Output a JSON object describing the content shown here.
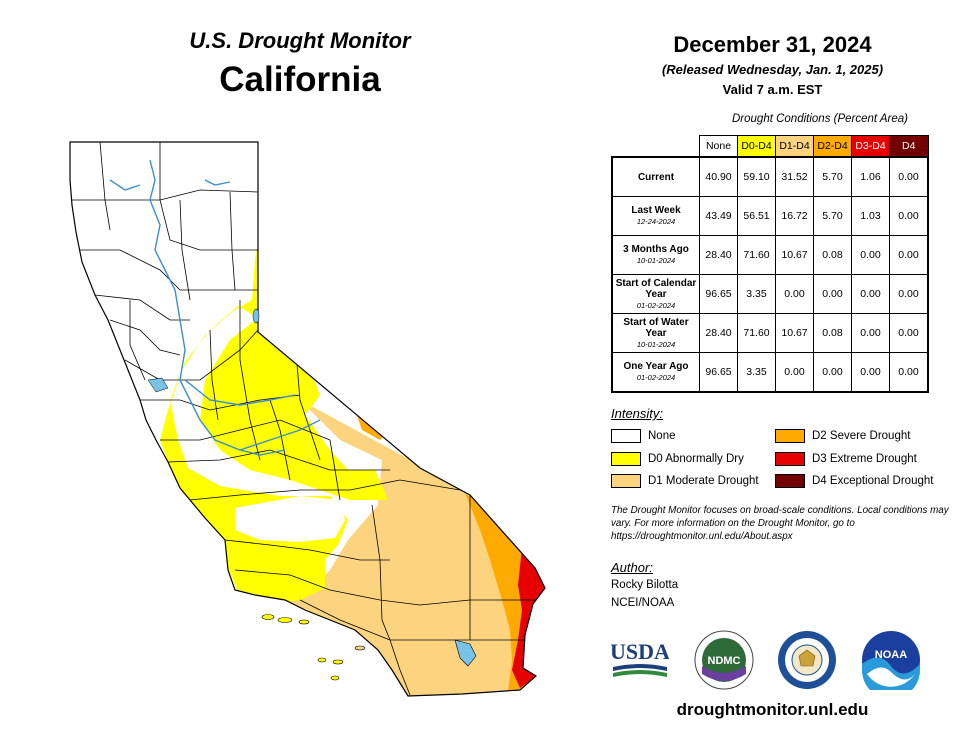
{
  "header": {
    "left_title": "U.S. Drought Monitor",
    "state": "California",
    "date": "December 31, 2024",
    "released": "(Released Wednesday, Jan. 1, 2025)",
    "valid": "Valid 7 a.m. EST"
  },
  "table": {
    "caption": "Drought Conditions (Percent Area)",
    "columns": [
      {
        "label": "None",
        "color": "#ffffff",
        "text_color": "#000000"
      },
      {
        "label": "D0-D4",
        "color": "#ffff00",
        "text_color": "#000000"
      },
      {
        "label": "D1-D4",
        "color": "#fcd37f",
        "text_color": "#000000"
      },
      {
        "label": "D2-D4",
        "color": "#ffaa00",
        "text_color": "#000000"
      },
      {
        "label": "D3-D4",
        "color": "#e60000",
        "text_color": "#ffffff"
      },
      {
        "label": "D4",
        "color": "#730000",
        "text_color": "#ffffff"
      }
    ],
    "rows": [
      {
        "label": "Current",
        "date": "",
        "values": [
          "40.90",
          "59.10",
          "31.52",
          "5.70",
          "1.06",
          "0.00"
        ]
      },
      {
        "label": "Last Week",
        "date": "12-24-2024",
        "values": [
          "43.49",
          "56.51",
          "16.72",
          "5.70",
          "1.03",
          "0.00"
        ]
      },
      {
        "label": "3 Months Ago",
        "date": "10-01-2024",
        "values": [
          "28.40",
          "71.60",
          "10.67",
          "0.08",
          "0.00",
          "0.00"
        ]
      },
      {
        "label": "Start of Calendar Year",
        "date": "01-02-2024",
        "values": [
          "96.65",
          "3.35",
          "0.00",
          "0.00",
          "0.00",
          "0.00"
        ]
      },
      {
        "label": "Start of Water Year",
        "date": "10-01-2024",
        "values": [
          "28.40",
          "71.60",
          "10.67",
          "0.08",
          "0.00",
          "0.00"
        ]
      },
      {
        "label": "One Year Ago",
        "date": "01-02-2024",
        "values": [
          "96.65",
          "3.35",
          "0.00",
          "0.00",
          "0.00",
          "0.00"
        ]
      }
    ]
  },
  "legend": {
    "title": "Intensity:",
    "items": [
      {
        "label": "None",
        "color": "#ffffff"
      },
      {
        "label": "D0 Abnormally Dry",
        "color": "#ffff00"
      },
      {
        "label": "D1 Moderate Drought",
        "color": "#fcd37f"
      },
      {
        "label": "D2 Severe Drought",
        "color": "#ffaa00"
      },
      {
        "label": "D3 Extreme Drought",
        "color": "#e60000"
      },
      {
        "label": "D4 Exceptional Drought",
        "color": "#730000"
      }
    ]
  },
  "note": "The Drought Monitor focuses on broad-scale conditions. Local conditions may vary. For more information on the Drought Monitor, go to https://droughtmonitor.unl.edu/About.aspx",
  "author": {
    "title": "Author:",
    "name": "Rocky Bilotta",
    "org": "NCEI/NOAA"
  },
  "logos": {
    "usda": "USDA",
    "ndmc": "NDMC",
    "noaa": "NOAA"
  },
  "site_url": "droughtmonitor.unl.edu",
  "map_colors": {
    "none": "#ffffff",
    "d0": "#ffff00",
    "d1": "#fcd37f",
    "d2": "#ffaa00",
    "d3": "#e60000",
    "water": "#78c2e8",
    "river": "#3a8ed4"
  }
}
